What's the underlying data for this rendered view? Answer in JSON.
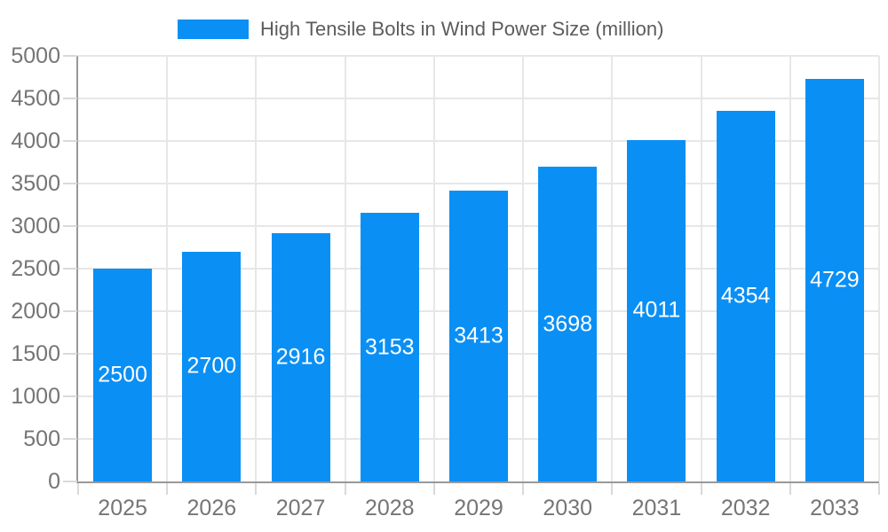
{
  "legend": {
    "label": "High Tensile Bolts in Wind Power Size (million)"
  },
  "chart_data": {
    "type": "bar",
    "title": "High Tensile Bolts in Wind Power Size (million)",
    "categories": [
      "2025",
      "2026",
      "2027",
      "2028",
      "2029",
      "2030",
      "2031",
      "2032",
      "2033"
    ],
    "values": [
      2500,
      2700,
      2916,
      3153,
      3413,
      3698,
      4011,
      4354,
      4729
    ],
    "value_labels": [
      "2500",
      "2700",
      "2916",
      "3153",
      "3413",
      "3698",
      "4011",
      "4354",
      "4729"
    ],
    "xlabel": "",
    "ylabel": "",
    "ylim": [
      0,
      5000
    ],
    "y_ticks": [
      0,
      500,
      1000,
      1500,
      2000,
      2500,
      3000,
      3500,
      4000,
      4500,
      5000
    ],
    "grid": true,
    "legend_position": "top"
  },
  "colors": {
    "bar": "#0a8ff4",
    "grid": "#e7e7e7",
    "axis": "#999999",
    "tick": "#d9d9d9",
    "axis_text": "#757575",
    "legend_text": "#5c5c5c",
    "value_text": "#ffffff",
    "background": "#ffffff"
  }
}
